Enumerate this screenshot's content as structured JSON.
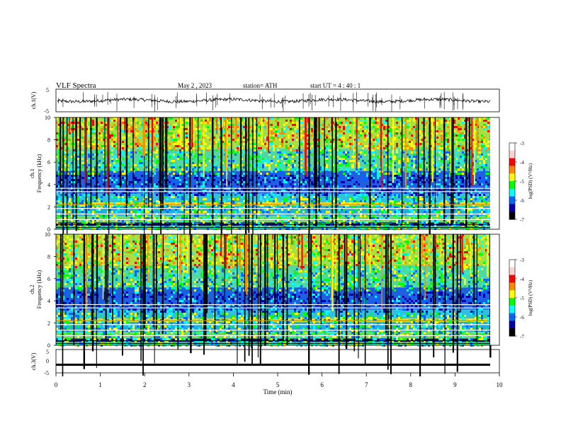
{
  "header": {
    "title": "VLF  Spectra",
    "date": "May 2  , 2023",
    "station": "station= ATH",
    "start": "start  UT  =   4  : 40 : 1"
  },
  "colors": {
    "scale": [
      "#ffffff",
      "#ffd0d0",
      "#ff0000",
      "#ff8800",
      "#ffff00",
      "#00ff00",
      "#00ffff",
      "#0066ff",
      "#0000aa",
      "#000000"
    ]
  },
  "chart_data": [
    {
      "type": "line",
      "id": "ch1-waveform",
      "ylabel": "ch.1(V)",
      "ylim": [
        -5,
        5
      ],
      "yticks": [
        "5",
        "-5"
      ],
      "xlim": [
        0,
        10
      ],
      "baseline_v": 0.0
    },
    {
      "type": "heatmap",
      "id": "ch1-spectrogram",
      "ylabel": "Frequency  (kHz)",
      "channel_label": "ch.1",
      "ylim": [
        0,
        10
      ],
      "yticks": [
        "0",
        "2",
        "4",
        "6",
        "8",
        "10"
      ],
      "xlim": [
        0,
        10
      ],
      "colorbar": {
        "label": "log(PSD) (V²/Hz)",
        "range": [
          -7,
          -3
        ],
        "ticks": [
          "-3",
          "-4",
          "-5",
          "-6",
          "-7"
        ]
      }
    },
    {
      "type": "heatmap",
      "id": "ch2-spectrogram",
      "ylabel": "Frequency  (kHz)",
      "channel_label": "ch.2",
      "ylim": [
        0,
        10
      ],
      "yticks": [
        "0",
        "2",
        "4",
        "6",
        "8",
        "10"
      ],
      "xlim": [
        0,
        10
      ],
      "colorbar": {
        "label": "log(PSD) (V²/Hz)",
        "range": [
          -7,
          -3
        ],
        "ticks": [
          "-3",
          "-4",
          "-5",
          "-6",
          "-7"
        ]
      }
    },
    {
      "type": "line",
      "id": "ch3-waveform",
      "ylabel": "ch.3(V)",
      "ylim": [
        -5,
        5
      ],
      "yticks": [
        "5",
        "0",
        "-5"
      ],
      "xlim": [
        0,
        10
      ],
      "baseline_v": -1.5,
      "xlabel": "Time  (min)",
      "xticks": [
        "0",
        "1",
        "2",
        "3",
        "4",
        "5",
        "6",
        "7",
        "8",
        "9",
        "10"
      ]
    }
  ]
}
